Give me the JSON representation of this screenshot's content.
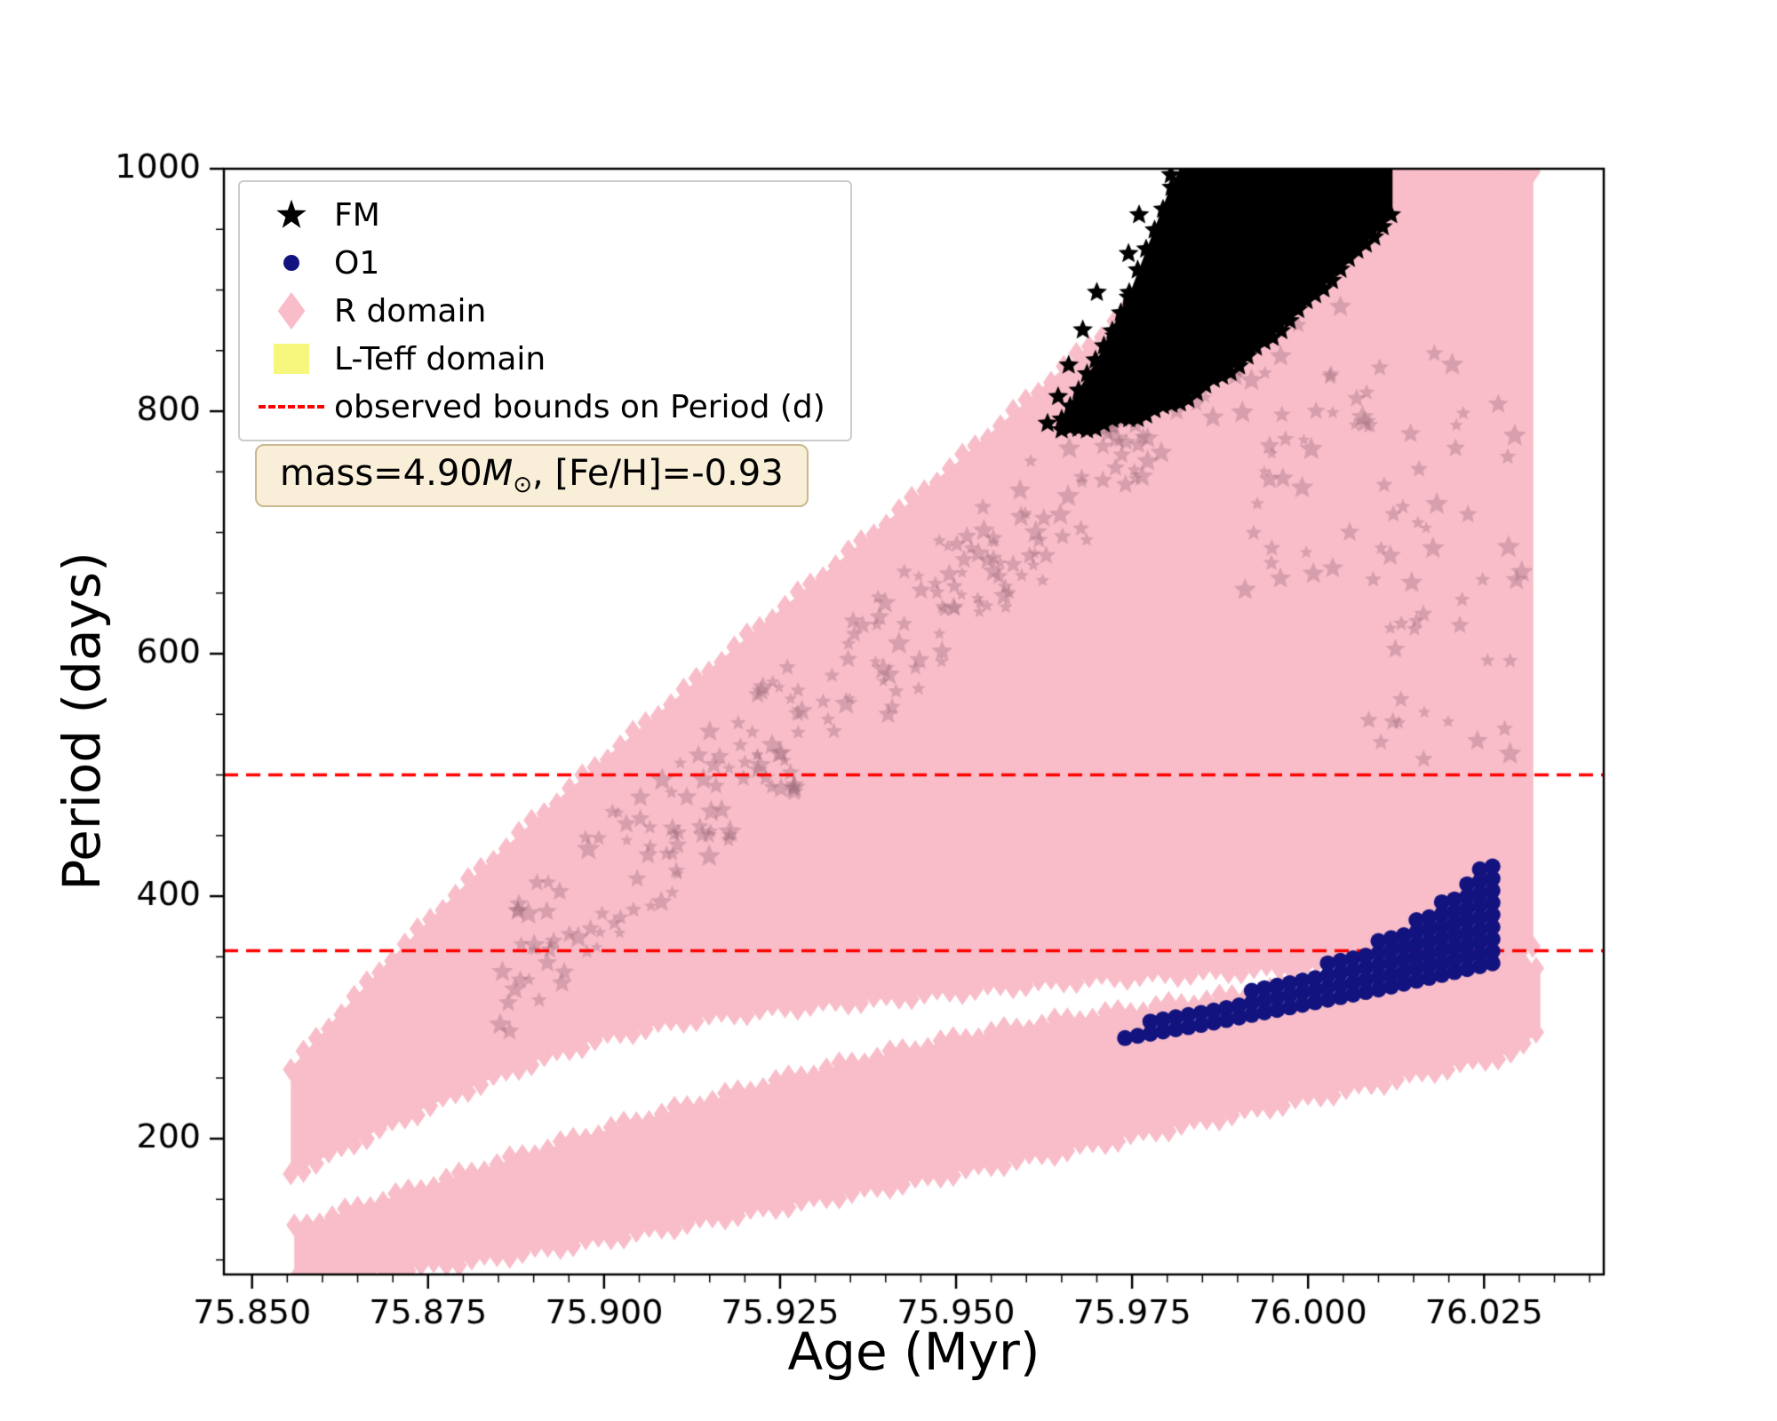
{
  "chart_data": {
    "type": "scatter",
    "title": "",
    "xlabel": "Age (Myr)",
    "ylabel": "Period (days)",
    "xlim": [
      75.846,
      76.042
    ],
    "ylim": [
      88,
      1000
    ],
    "grid": false,
    "legend_position": "upper left",
    "x_ticks": {
      "values": [
        75.85,
        75.875,
        75.9,
        75.925,
        75.95,
        75.975,
        76.0,
        76.025
      ],
      "labels": [
        "75.850",
        "75.875",
        "75.900",
        "75.925",
        "75.950",
        "75.975",
        "76.000",
        "76.025"
      ]
    },
    "y_ticks": {
      "values": [
        200,
        400,
        600,
        800,
        1000
      ],
      "labels": [
        "200",
        "400",
        "600",
        "800",
        "1000"
      ]
    },
    "x_minor_step": 0.005,
    "y_minor_step": 50,
    "hlines": {
      "values": [
        355,
        500
      ],
      "color": "#ff0000",
      "dash": [
        16,
        9
      ],
      "label": "observed bounds on Period (d)"
    },
    "series": [
      {
        "name": "R domain",
        "marker": "diamond",
        "color": "#f8bdc9",
        "bands": [
          {
            "x": [
              75.8555,
              75.862,
              75.87,
              75.88,
              75.89,
              75.9,
              75.91,
              75.92,
              75.93,
              75.94,
              75.95,
              75.96,
              75.97,
              75.98,
              75.99,
              76.0,
              76.01,
              76.02,
              76.028,
              76.032
            ],
            "lower": [
              170,
              190,
              213,
              240,
              264,
              284,
              297,
              305,
              311,
              316,
              322,
              328,
              333,
              336,
              339,
              342,
              345,
              349,
              352,
              356
            ],
            "upper": [
              258,
              300,
              350,
              408,
              462,
              513,
              562,
              612,
              660,
              708,
              757,
              808,
              860,
              916,
              975,
              1040,
              1110,
              1170,
              1210,
              1230
            ]
          },
          {
            "x": [
              75.856,
              75.868,
              75.88,
              75.892,
              75.904,
              75.916,
              75.928,
              75.94,
              75.952,
              75.964,
              75.976,
              75.988,
              76.0,
              76.012,
              76.022,
              76.03,
              76.033
            ],
            "lower": [
              86,
              90,
              99,
              110,
              122,
              135,
              148,
              161,
              175,
              189,
              204,
              219,
              234,
              249,
              262,
              272,
              292
            ],
            "upper": [
              126,
              148,
              170,
              192,
              213,
              233,
              252,
              269,
              284,
              296,
              306,
              316,
              326,
              336,
              344,
              350,
              338
            ]
          }
        ],
        "texture": {
          "count": 340,
          "x_range": [
            75.885,
            76.031
          ],
          "base_depth": 150,
          "color": "rgba(150,100,115,0.33)"
        }
      },
      {
        "name": "FM",
        "marker": "star",
        "color": "#000000",
        "dense": {
          "x": [
            75.965,
            75.97,
            75.975,
            75.98,
            75.985,
            75.99,
            75.995,
            76.0,
            76.006,
            76.012
          ],
          "lower": [
            783,
            788,
            795,
            803,
            818,
            838,
            862,
            890,
            925,
            962
          ],
          "upper": [
            795,
            842,
            902,
            978,
            1040,
            1100,
            1150,
            1190,
            1220,
            1240
          ]
        },
        "points": [
          [
            75.9805,
            995
          ],
          [
            75.983,
            997
          ],
          [
            75.986,
            994
          ],
          [
            75.9885,
            991
          ],
          [
            75.976,
            962
          ],
          [
            75.98,
            960
          ],
          [
            75.984,
            957
          ],
          [
            75.9875,
            954
          ],
          [
            75.9745,
            930
          ],
          [
            75.9785,
            927
          ],
          [
            75.9825,
            924
          ],
          [
            75.97,
            898
          ],
          [
            75.9745,
            894
          ],
          [
            75.979,
            891
          ],
          [
            75.968,
            867
          ],
          [
            75.9725,
            862
          ],
          [
            75.977,
            858
          ],
          [
            75.966,
            838
          ],
          [
            75.9705,
            832
          ],
          [
            75.9645,
            812
          ],
          [
            75.969,
            806
          ],
          [
            75.963,
            790
          ]
        ]
      },
      {
        "name": "O1",
        "marker": "circle",
        "color": "#131380",
        "band": {
          "x": [
            75.974,
            75.98,
            75.986,
            75.992,
            75.998,
            76.004,
            76.01,
            76.016,
            76.022,
            76.028
          ],
          "lower": [
            283,
            289,
            295,
            302,
            309,
            316,
            323,
            331,
            339,
            347
          ],
          "upper": [
            292,
            301,
            311,
            322,
            334,
            348,
            365,
            386,
            412,
            442
          ]
        },
        "column_step": 0.0018,
        "row_step_days": 10,
        "radius_px": 9
      }
    ]
  },
  "legend": {
    "items": [
      {
        "label": "FM",
        "marker": "star",
        "color": "#000000"
      },
      {
        "label": "O1",
        "marker": "circle",
        "color": "#131380"
      },
      {
        "label": "R domain",
        "marker": "diamond",
        "color": "#f8bdc9"
      },
      {
        "label": "L-Teff domain",
        "marker": "square",
        "color": "#f7f77e"
      },
      {
        "label": "observed bounds on Period (d)",
        "marker": "dashed-line",
        "color": "#ff0000"
      }
    ]
  },
  "annotation": {
    "pre": "mass=4.90",
    "mass_symbol": "M",
    "sun_symbol": "⊙",
    "post": ", [Fe/H]=-0.93"
  }
}
